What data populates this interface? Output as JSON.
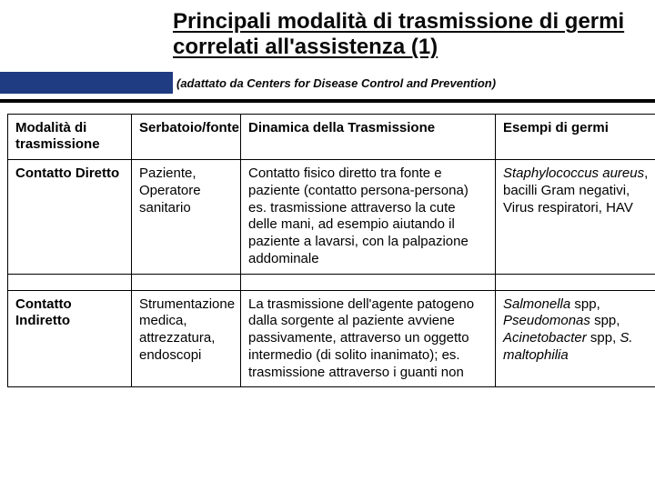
{
  "header": {
    "title": "Principali modalità di trasmissione di germi correlati all'assistenza (1)",
    "subtitle": "(adattato da Centers for Disease Control and Prevention)"
  },
  "colors": {
    "accent_bar": "#1f3b82",
    "rule": "#000000",
    "text": "#000000",
    "background": "#ffffff"
  },
  "table": {
    "columns": [
      "Modalità di trasmissione",
      "Serbatoio/fonte",
      "Dinamica della Trasmissione",
      "Esempi di germi"
    ],
    "rows": [
      {
        "mode": "Contatto Diretto",
        "source": "Paziente, Operatore sanitario",
        "dynamics": "Contatto fisico diretto tra fonte e paziente (contatto persona-persona) es. trasmissione attraverso la cute delle mani, ad esempio aiutando il paziente a lavarsi, con la palpazione addominale",
        "examples_html": "<em>Staphylococcus aureus</em>, bacilli Gram negativi, Virus respiratori, HAV"
      },
      {
        "mode": "Contatto Indiretto",
        "source": "Strumentazione medica, attrezzatura, endoscopi",
        "dynamics": "La trasmissione dell'agente patogeno dalla sorgente al paziente avviene passivamente, attraverso un oggetto intermedio (di solito inanimato); es. trasmissione attraverso i guanti non",
        "examples_html": "<em>Salmonella</em> spp, <em>Pseudomonas</em> spp, <em>Acinetobacter</em> spp, <em>S. maltophilia</em>"
      }
    ]
  }
}
